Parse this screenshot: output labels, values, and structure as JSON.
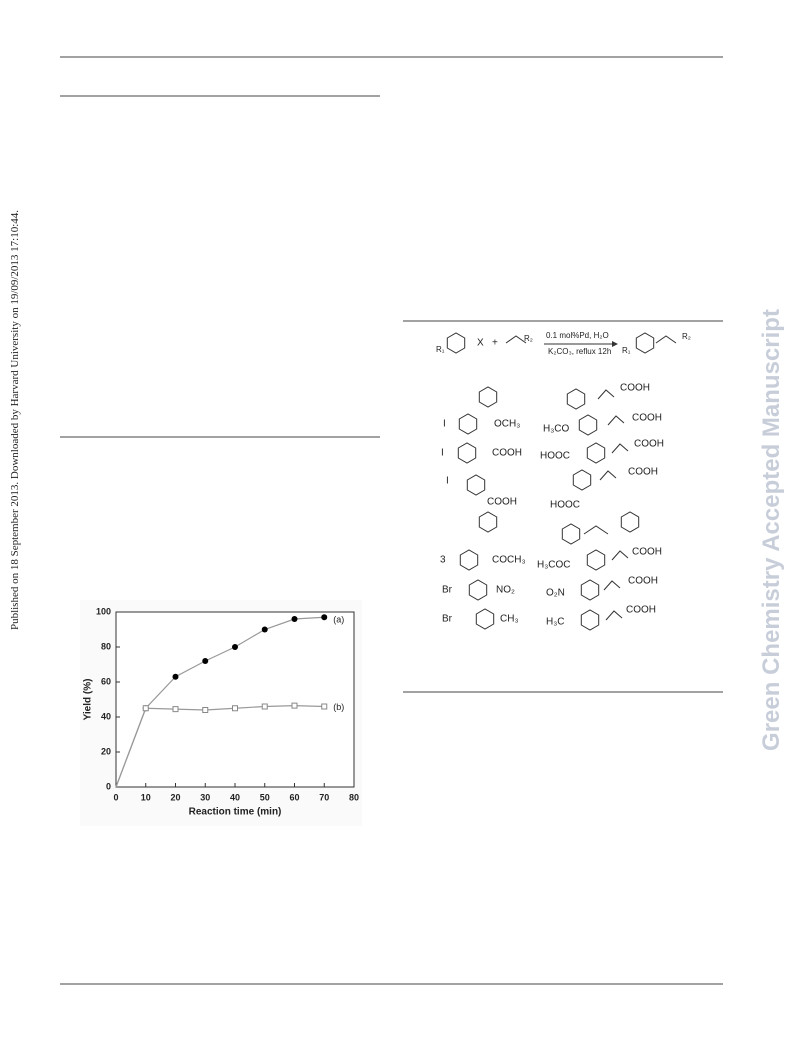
{
  "sidebar": {
    "published": "Published on 18 September 2013. Downloaded by Harvard University on 19/09/2013 17:10:44.",
    "journal": "Green Chemistry Accepted Manuscript"
  },
  "scheme": {
    "top": [
      "X",
      "+",
      "R₂",
      "0.1 mol%Pd, H₂O",
      "K₂CO₃, reflux 12h",
      "R₁",
      "R₁",
      "R₂"
    ],
    "substrates": [
      "I",
      "OCH₃",
      "I",
      "COOH",
      "I",
      "COOH",
      "3",
      "COCH₃",
      "Br",
      "NO₂",
      "Br",
      "CH₃"
    ],
    "products": [
      "COOH",
      "H₃CO",
      "COOH",
      "HOOC",
      "COOH",
      "HOOC",
      "COOH",
      "H₃COC",
      "COOH",
      "O₂N",
      "COOH",
      "H₃C",
      "COOH"
    ]
  },
  "chart_data": {
    "type": "line",
    "xlabel": "Reaction time (min)",
    "ylabel": "Yield (%)",
    "x": [
      0,
      10,
      20,
      30,
      40,
      50,
      60,
      70
    ],
    "series": [
      {
        "name": "(a)",
        "color": "#000000",
        "values": [
          0,
          45,
          63,
          72,
          80,
          90,
          96,
          97
        ]
      },
      {
        "name": "(b)",
        "color": "#888888",
        "values": [
          0,
          45,
          44.5,
          44,
          45,
          46,
          46.5,
          46
        ]
      }
    ],
    "xlim": [
      0,
      80
    ],
    "ylim": [
      0,
      100
    ],
    "xticks": [
      0,
      10,
      20,
      30,
      40,
      50,
      60,
      70,
      80
    ],
    "yticks": [
      0,
      20,
      40,
      60,
      80,
      100
    ]
  }
}
